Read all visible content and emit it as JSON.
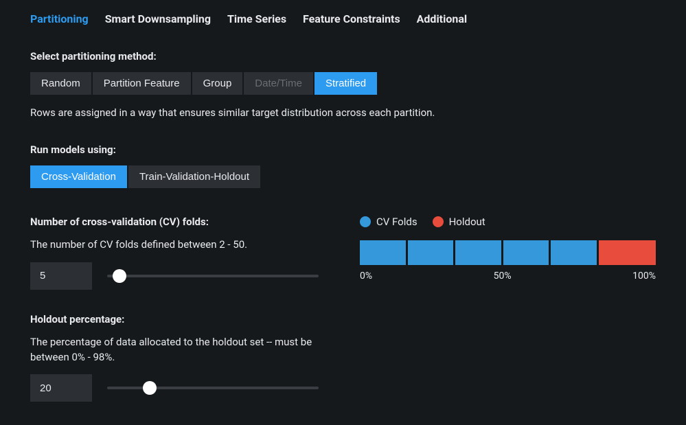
{
  "colors": {
    "accent": "#2d9bf0",
    "cv_fold": "#3498db",
    "holdout": "#e74c3c",
    "panel": "#2c2f33",
    "bg": "#16191c"
  },
  "tabs": [
    {
      "label": "Partitioning",
      "active": true
    },
    {
      "label": "Smart Downsampling",
      "active": false
    },
    {
      "label": "Time Series",
      "active": false
    },
    {
      "label": "Feature Constraints",
      "active": false
    },
    {
      "label": "Additional",
      "active": false
    }
  ],
  "partitioning": {
    "label": "Select partitioning method:",
    "options": [
      {
        "label": "Random",
        "state": "normal"
      },
      {
        "label": "Partition Feature",
        "state": "normal"
      },
      {
        "label": "Group",
        "state": "normal"
      },
      {
        "label": "Date/Time",
        "state": "disabled"
      },
      {
        "label": "Stratified",
        "state": "selected"
      }
    ],
    "description": "Rows are assigned in a way that ensures similar target distribution across each partition."
  },
  "run_models": {
    "label": "Run models using:",
    "options": [
      {
        "label": "Cross-Validation",
        "state": "selected"
      },
      {
        "label": "Train-Validation-Holdout",
        "state": "normal"
      }
    ]
  },
  "cv_folds": {
    "label": "Number of cross-validation (CV) folds:",
    "description": "The number of CV folds defined between 2 - 50.",
    "value": "5",
    "min": 2,
    "max": 50,
    "thumb_pct": 6
  },
  "holdout": {
    "label": "Holdout percentage:",
    "description": "The percentage of data allocated to the holdout set -- must be between 0% - 98%.",
    "value": "20",
    "min": 0,
    "max": 98,
    "thumb_pct": 20
  },
  "viz": {
    "legend": [
      {
        "label": "CV Folds",
        "color": "#3498db"
      },
      {
        "label": "Holdout",
        "color": "#e74c3c"
      }
    ],
    "cv_count": 5,
    "holdout_pct": 20,
    "axis": [
      "0%",
      "50%",
      "100%"
    ]
  }
}
